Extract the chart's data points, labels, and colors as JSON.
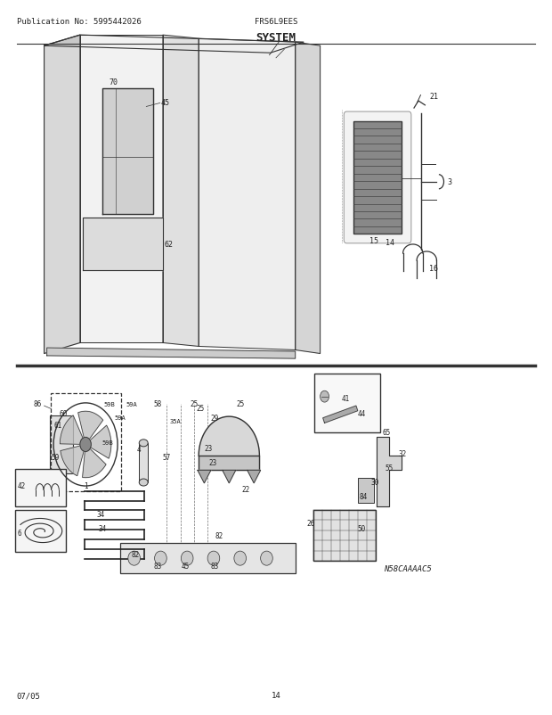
{
  "title": "SYSTEM",
  "pub_no": "Publication No: 5995442026",
  "model": "FRS6L9EES",
  "date": "07/05",
  "page": "14",
  "diagram_code": "N58CAAAAC5",
  "bg_color": "#ffffff",
  "line_color": "#333333",
  "text_color": "#222222"
}
